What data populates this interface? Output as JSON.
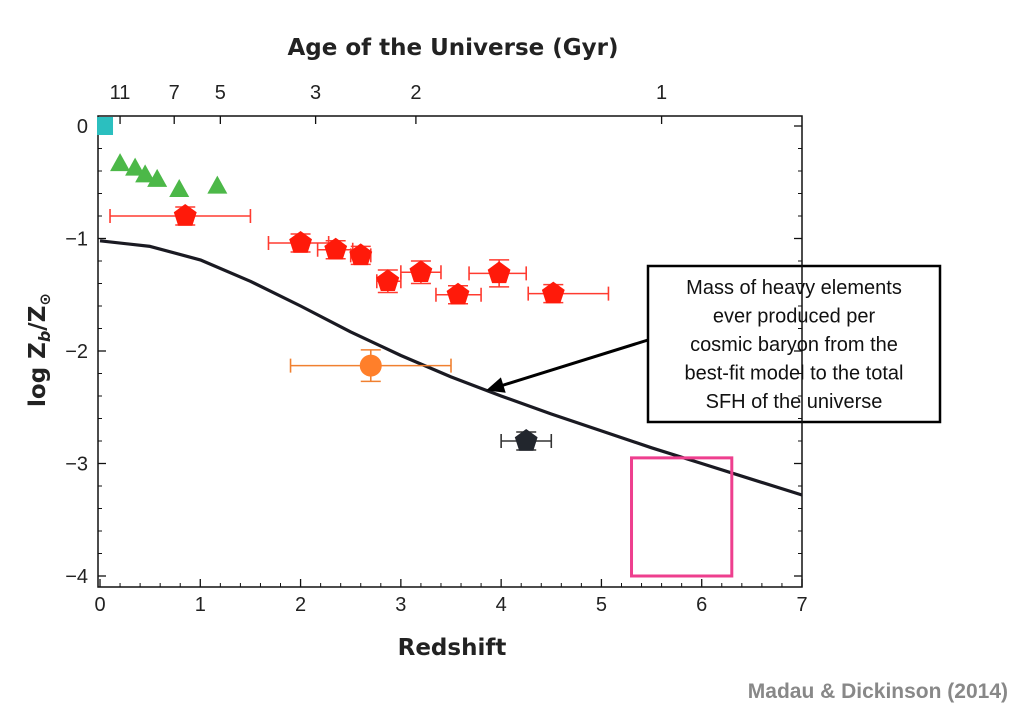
{
  "chart_data": {
    "type": "scatter",
    "title": "",
    "xlabel": "Redshift",
    "ylabel_parts": [
      "log Z",
      "b",
      "/Z",
      "⊙"
    ],
    "top_axis_label": "Age of the Universe (Gyr)",
    "xlim": [
      0,
      7
    ],
    "ylim": [
      -4.1,
      0.1
    ],
    "x_ticks": [
      "0",
      "1",
      "2",
      "3",
      "4",
      "5",
      "6",
      "7"
    ],
    "y_ticks": [
      "0",
      "−1",
      "−2",
      "−3",
      "−4"
    ],
    "top_ticks": [
      {
        "label": "11",
        "z": 0.2
      },
      {
        "label": "7",
        "z": 0.74
      },
      {
        "label": "5",
        "z": 1.2
      },
      {
        "label": "3",
        "z": 2.15
      },
      {
        "label": "2",
        "z": 3.15
      },
      {
        "label": "1",
        "z": 5.6
      }
    ],
    "grid": false,
    "series": [
      {
        "marker": "square",
        "color": "#2bbfbf",
        "points": [
          {
            "x": 0.05,
            "y": 0.0
          }
        ]
      },
      {
        "marker": "triangle",
        "color": "#4cb848",
        "points": [
          {
            "x": 0.2,
            "y": -0.33
          },
          {
            "x": 0.35,
            "y": -0.37
          },
          {
            "x": 0.45,
            "y": -0.43
          },
          {
            "x": 0.57,
            "y": -0.47
          },
          {
            "x": 0.79,
            "y": -0.56
          },
          {
            "x": 1.17,
            "y": -0.53
          }
        ]
      },
      {
        "marker": "pentagon",
        "color": "#ff1a0a",
        "errcolor": "#ff3b30",
        "points": [
          {
            "x": 0.85,
            "y": -0.8,
            "xerr": [
              0.75,
              0.65
            ],
            "yerr": 0.08
          },
          {
            "x": 2.0,
            "y": -1.04,
            "xerr": [
              0.32,
              0.28
            ],
            "yerr": 0.08
          },
          {
            "x": 2.35,
            "y": -1.1,
            "xerr": [
              0.18,
              0.17
            ],
            "yerr": 0.08
          },
          {
            "x": 2.6,
            "y": -1.15,
            "xerr": [
              0.1,
              0.1
            ],
            "yerr": 0.08
          },
          {
            "x": 2.87,
            "y": -1.38,
            "xerr": [
              0.11,
              0.13
            ],
            "yerr": 0.1
          },
          {
            "x": 3.2,
            "y": -1.3,
            "xerr": [
              0.2,
              0.2
            ],
            "yerr": 0.1
          },
          {
            "x": 3.57,
            "y": -1.5,
            "xerr": [
              0.22,
              0.23
            ],
            "yerr": 0.08
          },
          {
            "x": 3.98,
            "y": -1.31,
            "xerr": [
              0.3,
              0.27
            ],
            "yerr": 0.12
          },
          {
            "x": 4.52,
            "y": -1.49,
            "xerr": [
              0.25,
              0.55
            ],
            "yerr": 0.08
          }
        ]
      },
      {
        "marker": "circle",
        "color": "#ff7f2a",
        "errcolor": "#f08030",
        "points": [
          {
            "x": 2.7,
            "y": -2.13,
            "xerr": [
              0.8,
              0.8
            ],
            "yerr": 0.14
          }
        ]
      },
      {
        "marker": "pentagon",
        "color": "#22262d",
        "errcolor": "#333333",
        "points": [
          {
            "x": 4.25,
            "y": -2.8,
            "xerr": [
              0.25,
              0.25
            ],
            "yerr": 0.08
          }
        ]
      }
    ],
    "model_curve": {
      "color": "#1a1a22",
      "x": [
        0,
        0.5,
        1,
        1.5,
        2,
        2.5,
        3,
        3.5,
        4,
        4.5,
        5,
        5.5,
        6,
        6.5,
        7
      ],
      "y": [
        -1.02,
        -1.07,
        -1.19,
        -1.38,
        -1.6,
        -1.83,
        -2.04,
        -2.23,
        -2.4,
        -2.56,
        -2.71,
        -2.86,
        -3.0,
        -3.14,
        -3.28
      ]
    },
    "box": {
      "color": "#ee3f8e",
      "x": [
        5.3,
        6.3
      ],
      "y": [
        -4.0,
        -2.95
      ]
    },
    "annotation": {
      "lines": [
        "Mass of heavy elements",
        "ever produced per",
        "cosmic baryon from the",
        "best-fit model to the total",
        "SFH of the universe"
      ],
      "arrow_target": {
        "x": 3.85,
        "y": -2.35
      }
    },
    "credit": "Madau & Dickinson (2014)"
  }
}
